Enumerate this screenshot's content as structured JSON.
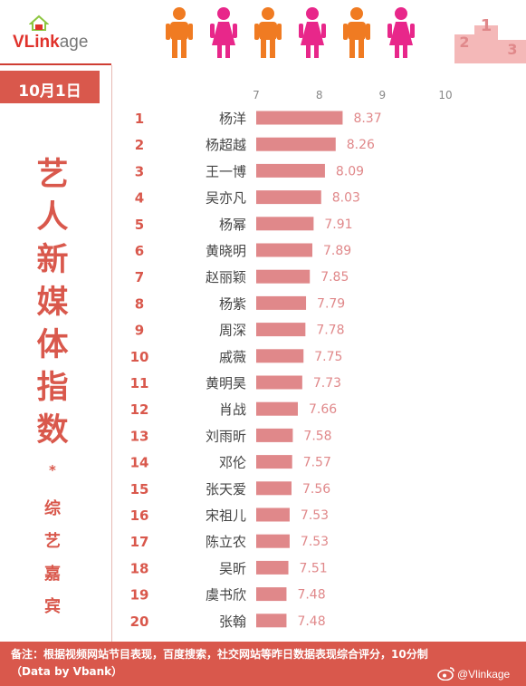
{
  "brand": {
    "logo_main": "VLink",
    "logo_rest": "age",
    "podium_numbers": [
      "2",
      "1",
      "3"
    ]
  },
  "date_label": "10月1日",
  "vertical_title": [
    "艺",
    "人",
    "新",
    "媒",
    "体",
    "指",
    "数"
  ],
  "star": "*",
  "subtitle": [
    "综",
    "艺",
    "嘉",
    "宾"
  ],
  "footer": {
    "note": "备注：根据视频网站节目表现，百度搜索，社交网站等昨日数据表现综合评分，10分制（Data by Vbank）",
    "watermark": "@Vlinkage"
  },
  "colors": {
    "accent": "#d9584c",
    "bar": "#e0888a",
    "value_text": "#e0888a",
    "rank_text": "#d9584c",
    "person_orange": "#f07b22",
    "person_pink": "#e8278a"
  },
  "chart_data": {
    "type": "bar",
    "orientation": "horizontal",
    "x_ticks": [
      7,
      8,
      9,
      10
    ],
    "xlim": [
      7,
      10
    ],
    "ranks": [
      1,
      2,
      3,
      4,
      5,
      6,
      7,
      8,
      9,
      10,
      11,
      12,
      13,
      14,
      15,
      16,
      17,
      18,
      19,
      20
    ],
    "categories": [
      "杨洋",
      "杨超越",
      "王一博",
      "吴亦凡",
      "杨幂",
      "黄晓明",
      "赵丽颖",
      "杨紫",
      "周深",
      "戚薇",
      "黄明昊",
      "肖战",
      "刘雨昕",
      "邓伦",
      "张天爱",
      "宋祖儿",
      "陈立农",
      "吴昕",
      "虞书欣",
      "张翰"
    ],
    "values": [
      8.37,
      8.26,
      8.09,
      8.03,
      7.91,
      7.89,
      7.85,
      7.79,
      7.78,
      7.75,
      7.73,
      7.66,
      7.58,
      7.57,
      7.56,
      7.53,
      7.53,
      7.51,
      7.48,
      7.48
    ],
    "value_labels": [
      "8.37",
      "8.26",
      "8.09",
      "8.03",
      "7.91",
      "7.89",
      "7.85",
      "7.79",
      "7.78",
      "7.75",
      "7.73",
      "7.66",
      "7.58",
      "7.57",
      "7.56",
      "7.53",
      "7.53",
      "7.51",
      "7.48",
      "7.48"
    ]
  }
}
